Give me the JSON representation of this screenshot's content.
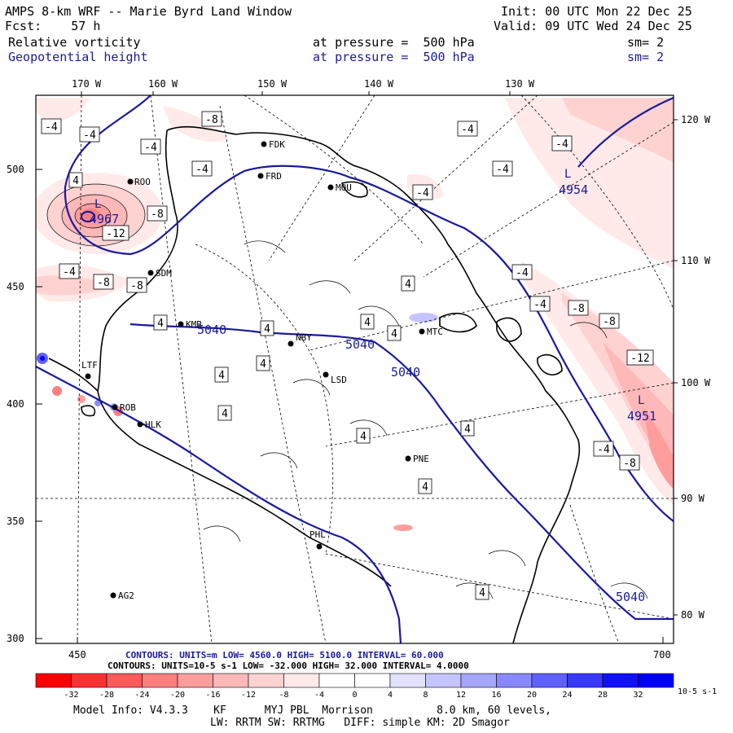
{
  "header": {
    "title": "AMPS 8-km WRF -- Marie Byrd Land Window",
    "fcst": "Fcst:    57 h",
    "init": "Init: 00 UTC Mon 22 Dec 25",
    "valid": "Valid: 09 UTC Wed 24 Dec 25",
    "field1": "Relative vorticity",
    "field2": "Geopotential height",
    "level1": "at pressure =  500 hPa",
    "level2": "at pressure =  500 hPa",
    "sm1": "sm= 2",
    "sm2": "sm= 2"
  },
  "axes": {
    "top_lon": [
      "170 W",
      "160 W",
      "150 W",
      "140 W",
      "130 W"
    ],
    "right_lon": [
      "120 W",
      "110 W",
      "100 W",
      "90 W",
      "80 W"
    ],
    "left_y": [
      "500",
      "450",
      "400",
      "350",
      "300"
    ],
    "bottom_x": [
      "450",
      "700"
    ]
  },
  "stations": [
    "ROO",
    "FDK",
    "FRD",
    "MOU",
    "SDM",
    "KMB",
    "NBY",
    "MTC",
    "LSD",
    "LTF",
    "ROB",
    "HLK",
    "PNE",
    "PHL",
    "AG2"
  ],
  "height_labels": [
    "4967",
    "4954",
    "4951",
    "5040",
    "5040",
    "5040",
    "5040"
  ],
  "vort_labels": [
    "-4",
    "-4",
    "-4",
    "-4",
    "-4",
    "-4",
    "-4",
    "-4",
    "-4",
    "-4",
    "-4",
    "-4",
    "-8",
    "-8",
    "-8",
    "-8",
    "-8",
    "-8",
    "-8",
    "-12",
    "-12",
    "4",
    "4",
    "4",
    "4",
    "4",
    "4",
    "4",
    "4",
    "4",
    "4",
    "4",
    "4",
    "4"
  ],
  "contours_line1": "CONTOURS:  UNITS=m    LOW=  4560.0        HIGH=  5100.0          INTERVAL=  60.000",
  "contours_line1_overlay": "CONTOURS:  UNITS=m    LOW=  4560.0        HIGH=  5100.0          INTERVAL=  60.000",
  "contours_line2": "CONTOURS:  UNITS=10-5 s-1  LOW= -32.000        HIGH=  32.000        INTERVAL=  4.0000",
  "colorbar": {
    "ticks": [
      "-32",
      "-28",
      "-24",
      "-20",
      "-16",
      "-12",
      "-8",
      "-4",
      "0",
      "4",
      "8",
      "12",
      "16",
      "20",
      "24",
      "28",
      "32"
    ],
    "units": "10-5 s-1",
    "colors": [
      "#ff0000",
      "#ff3030",
      "#ff5a5a",
      "#ff7f7f",
      "#ff9d9d",
      "#ffb8b8",
      "#ffd2d2",
      "#ffe9e9",
      "#ffffff",
      "#ffffff",
      "#e2e2ff",
      "#c4c4ff",
      "#a6a6ff",
      "#8888ff",
      "#6060ff",
      "#3838ff",
      "#0000ff"
    ]
  },
  "footer": {
    "model": "Model Info: V4.3.3    KF      MYJ PBL  Morrison          8.0 km, 60 levels,",
    "physics": "LW: RRTM SW: RRTMG   DIFF: simple KM: 2D Smagor"
  }
}
